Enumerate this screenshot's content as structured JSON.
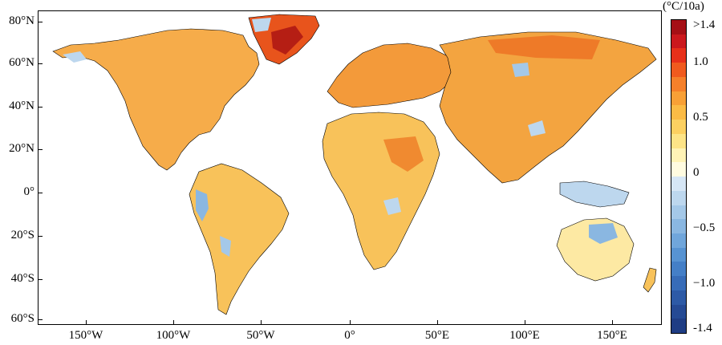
{
  "map": {
    "lat_labels": [
      "80°N",
      "60°N",
      "40°N",
      "20°N",
      "0°",
      "20°S",
      "40°S",
      "60°S"
    ],
    "lon_labels": [
      "150°W",
      "100°W",
      "50°W",
      "0°",
      "50°E",
      "100°E",
      "150°E"
    ]
  },
  "colorbar": {
    "unit": "(°C/10a)",
    "labels": [
      ">1.4",
      "1.0",
      "0.5",
      "0",
      "−0.5",
      "−1.0",
      "-1.4"
    ],
    "colors": [
      "#a50f15",
      "#cb181d",
      "#e7301a",
      "#f05a1e",
      "#f5802a",
      "#f8a036",
      "#fbbb45",
      "#fcd061",
      "#fde487",
      "#fff3b6",
      "#fffbe0",
      "#d6e6f5",
      "#bdd7ee",
      "#a4c8e8",
      "#8ab7e1",
      "#70a6db",
      "#5793d2",
      "#447fc7",
      "#376cb8",
      "#2d5aa6",
      "#254a94",
      "#1f3d84"
    ]
  },
  "colors": {
    "warm_strong": "#d9451c",
    "warm_mid": "#f2913a",
    "warm_light": "#f8c25a",
    "warm_pale": "#fde9a3",
    "cool_light": "#bdd7ee",
    "cool_mid": "#7fb0e0",
    "dark_red": "#9b1010"
  }
}
